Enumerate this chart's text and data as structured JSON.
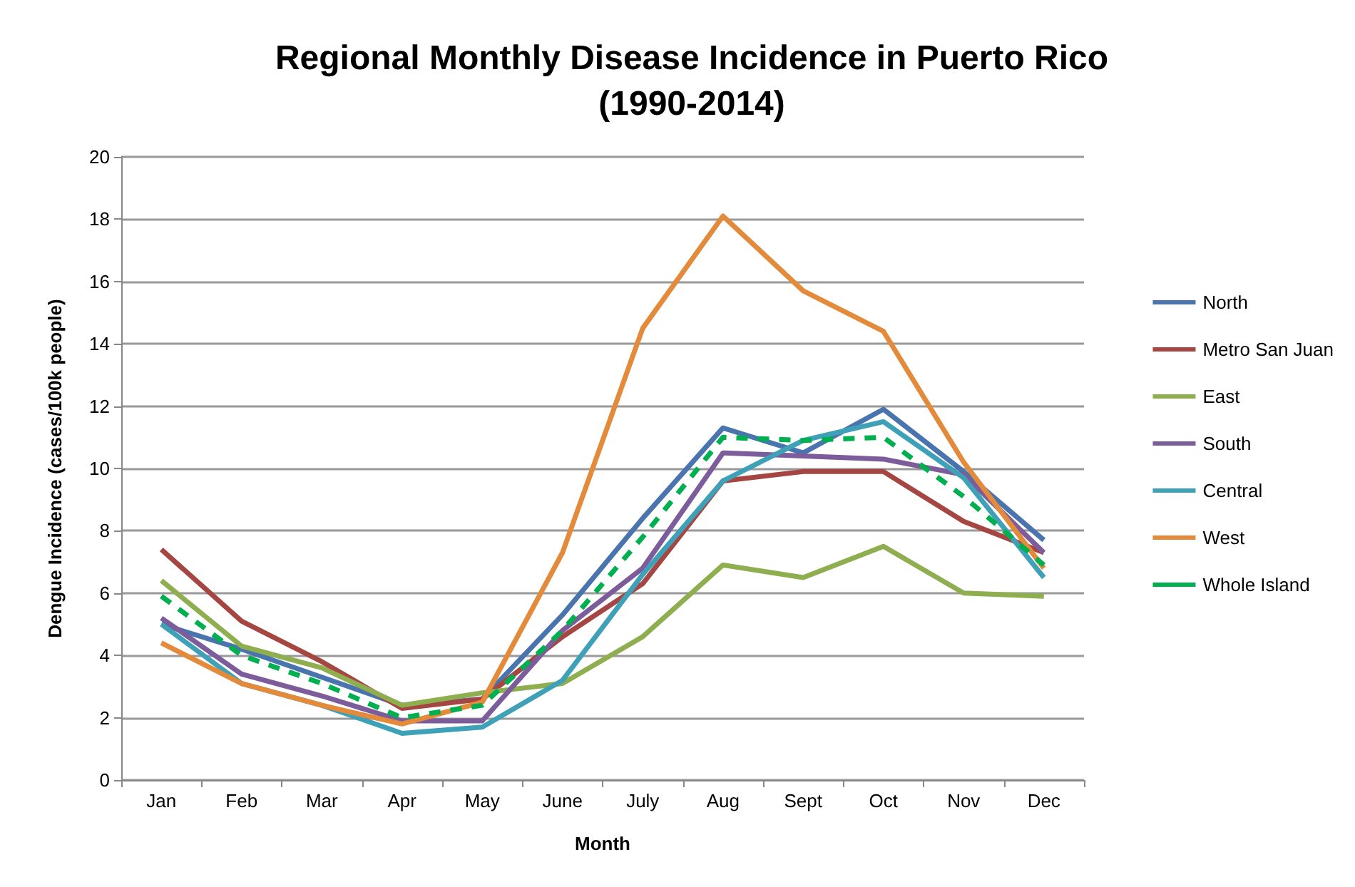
{
  "chart_data": {
    "type": "line",
    "title": "Regional Monthly Disease Incidence in Puerto Rico\n(1990-2014)",
    "xlabel": "Month",
    "ylabel": "Dengue Incidence (cases/100k people)",
    "categories": [
      "Jan",
      "Feb",
      "Mar",
      "Apr",
      "May",
      "June",
      "July",
      "Aug",
      "Sept",
      "Oct",
      "Nov",
      "Dec"
    ],
    "series": [
      {
        "name": "North",
        "color": "#4a74ae",
        "values": [
          5.0,
          4.2,
          3.3,
          2.4,
          2.6,
          5.3,
          8.4,
          11.3,
          10.5,
          11.9,
          9.9,
          7.7
        ]
      },
      {
        "name": "Metro San Juan",
        "color": "#a64643",
        "values": [
          7.4,
          5.1,
          3.8,
          2.3,
          2.6,
          4.6,
          6.3,
          9.6,
          9.9,
          9.9,
          8.3,
          7.3
        ]
      },
      {
        "name": "East",
        "color": "#8fae4f",
        "values": [
          6.4,
          4.3,
          3.6,
          2.4,
          2.8,
          3.1,
          4.6,
          6.9,
          6.5,
          7.5,
          6.0,
          5.9
        ]
      },
      {
        "name": "South",
        "color": "#7c5c9a",
        "values": [
          5.2,
          3.4,
          2.7,
          1.9,
          1.9,
          4.8,
          6.8,
          10.5,
          10.4,
          10.3,
          9.8,
          7.3
        ]
      },
      {
        "name": "Central",
        "color": "#3fa1b8",
        "values": [
          5.0,
          3.1,
          2.4,
          1.5,
          1.7,
          3.2,
          6.6,
          9.6,
          10.9,
          11.5,
          9.7,
          6.5
        ]
      },
      {
        "name": "West",
        "color": "#e38a3b",
        "values": [
          4.4,
          3.1,
          2.4,
          1.8,
          2.5,
          7.3,
          14.5,
          18.1,
          15.7,
          14.4,
          10.2,
          6.8
        ]
      },
      {
        "name": "Whole Island",
        "color": "#00b050",
        "line_style": "dashed",
        "values": [
          5.9,
          4.0,
          3.1,
          2.0,
          2.4,
          4.8,
          7.8,
          11.0,
          10.9,
          11.0,
          9.1,
          6.9
        ]
      }
    ],
    "ylim": [
      0,
      20
    ],
    "yticks": [
      0,
      2,
      4,
      6,
      8,
      10,
      12,
      14,
      16,
      18,
      20
    ],
    "grid": "y",
    "legend": "right",
    "marker": "none",
    "line_style": "solid"
  }
}
